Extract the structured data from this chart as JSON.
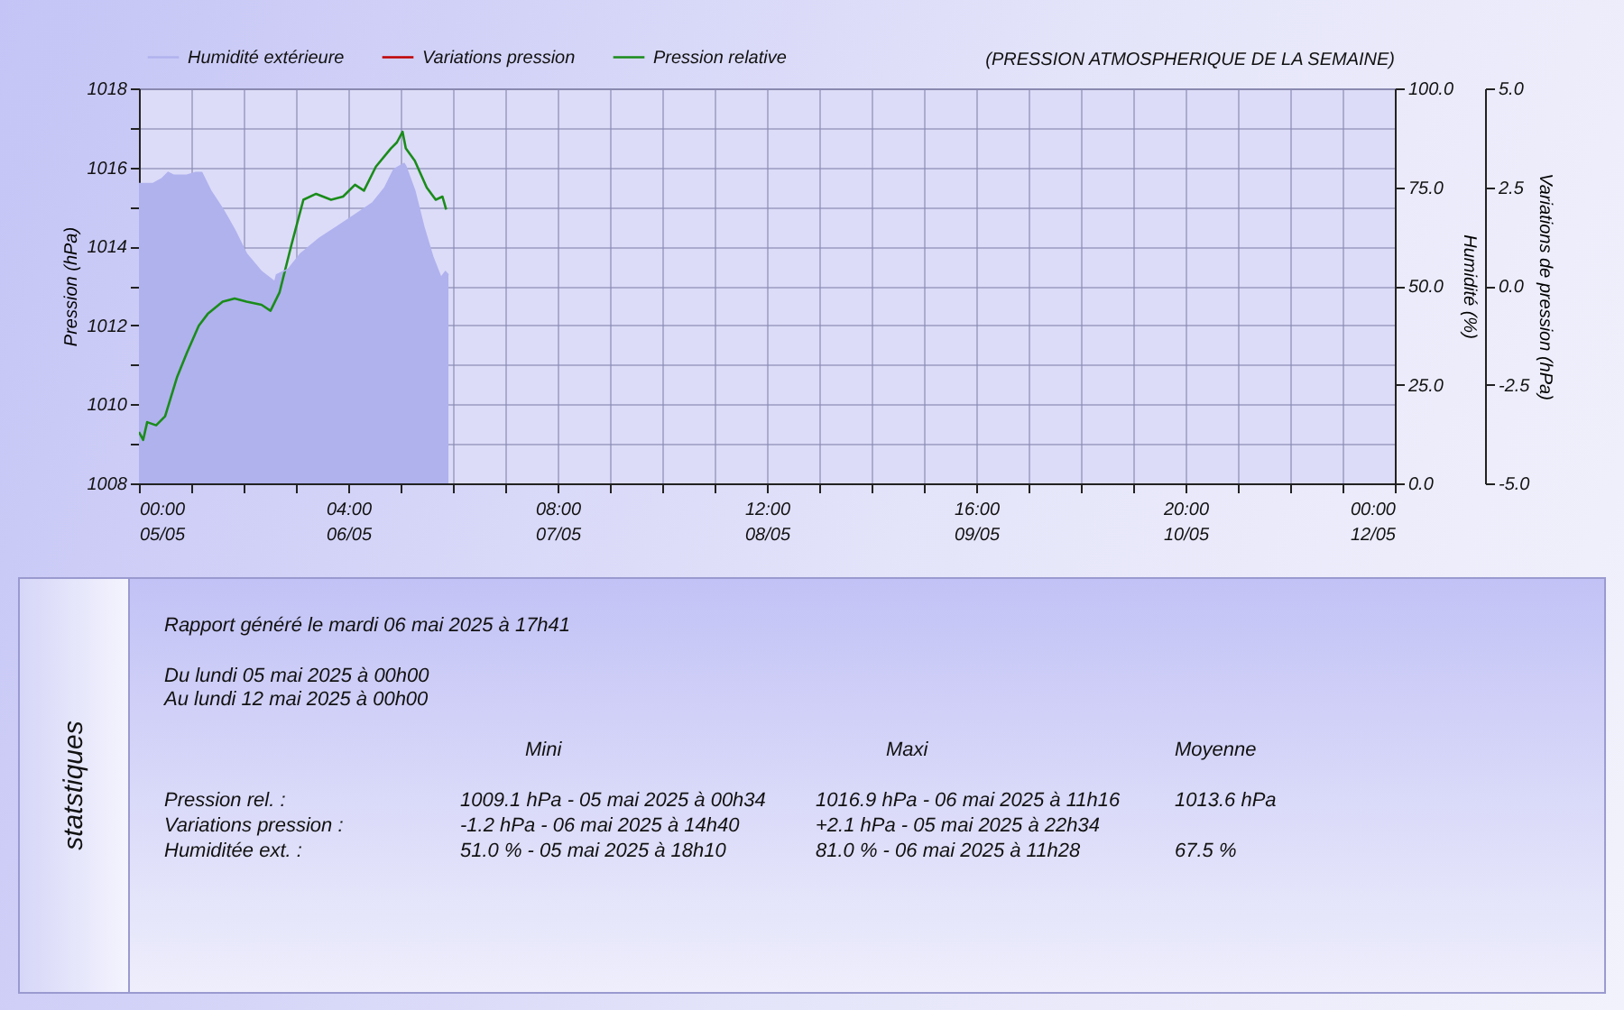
{
  "chart_data": {
    "type": "line",
    "title": "(PRESSION ATMOSPHERIQUE DE LA SEMAINE)",
    "ylabel": "Pression (hPa)",
    "y2label": "Humidité (%)",
    "y3label": "Variations de pression (hPa)",
    "legend": "top",
    "grid": true,
    "xlim": [
      "2025-05-05T00:00",
      "2025-05-12T00:00"
    ],
    "xticks": [
      {
        "value": "2025-05-05T00:00",
        "label": "00:00\n05/05"
      },
      {
        "value": "2025-05-05T07:00",
        "label": null
      },
      {
        "value": "2025-05-05T14:00",
        "label": null
      },
      {
        "value": "2025-05-05T21:00",
        "label": null
      },
      {
        "value": "2025-05-06T04:00",
        "label": "04:00\n06/05"
      },
      {
        "value": "2025-05-06T11:00",
        "label": null
      },
      {
        "value": "2025-05-06T18:00",
        "label": null
      },
      {
        "value": "2025-05-07T01:00",
        "label": null
      },
      {
        "value": "2025-05-07T08:00",
        "label": "08:00\n07/05"
      },
      {
        "value": "2025-05-07T15:00",
        "label": null
      },
      {
        "value": "2025-05-07T22:00",
        "label": null
      },
      {
        "value": "2025-05-08T05:00",
        "label": null
      },
      {
        "value": "2025-05-08T12:00",
        "label": "12:00\n08/05"
      },
      {
        "value": "2025-05-08T19:00",
        "label": null
      },
      {
        "value": "2025-05-09T02:00",
        "label": null
      },
      {
        "value": "2025-05-09T09:00",
        "label": null
      },
      {
        "value": "2025-05-09T16:00",
        "label": "16:00\n09/05"
      },
      {
        "value": "2025-05-09T23:00",
        "label": null
      },
      {
        "value": "2025-05-10T06:00",
        "label": null
      },
      {
        "value": "2025-05-10T13:00",
        "label": null
      },
      {
        "value": "2025-05-10T20:00",
        "label": "20:00\n10/05"
      },
      {
        "value": "2025-05-11T03:00",
        "label": null
      },
      {
        "value": "2025-05-11T10:00",
        "label": null
      },
      {
        "value": "2025-05-11T17:00",
        "label": null
      },
      {
        "value": "2025-05-12T00:00",
        "label": "00:00\n12/05"
      }
    ],
    "ylim": [
      1008,
      1018
    ],
    "yticks": [
      1008,
      {
        "value": 1009,
        "label": null
      },
      1010,
      {
        "value": 1011,
        "label": null
      },
      1012,
      {
        "value": 1013,
        "label": null
      },
      1014,
      {
        "value": 1015,
        "label": null
      },
      1016,
      {
        "value": 1017,
        "label": null
      },
      1018
    ],
    "y2lim": [
      0,
      100
    ],
    "y2ticks": [
      {
        "value": 0,
        "label": "0.0"
      },
      {
        "value": 25,
        "label": "25.0"
      },
      {
        "value": 50,
        "label": "50.0"
      },
      {
        "value": 75,
        "label": "75.0"
      },
      {
        "value": 100,
        "label": "100.0"
      }
    ],
    "y3lim": [
      -5,
      5
    ],
    "y3ticks": [
      {
        "value": -5,
        "label": "-5.0"
      },
      {
        "value": -2.5,
        "label": "-2.5"
      },
      {
        "value": 0,
        "label": "0.0"
      },
      {
        "value": 2.5,
        "label": "2.5"
      },
      {
        "value": 5,
        "label": "5.0"
      }
    ],
    "series": [
      {
        "name": "Humidité extérieure",
        "type": "area",
        "axis": "y2",
        "color": "#b0b2ee",
        "x": [
          "2025-05-05T00:00",
          "2025-05-05T01:54",
          "2025-05-05T03:06",
          "2025-05-05T03:54",
          "2025-05-05T04:42",
          "2025-05-05T06:24",
          "2025-05-05T07:36",
          "2025-05-05T08:24",
          "2025-05-05T09:36",
          "2025-05-05T11:12",
          "2025-05-05T12:48",
          "2025-05-05T14:24",
          "2025-05-05T16:24",
          "2025-05-05T18:00",
          "2025-05-05T18:10",
          "2025-05-05T18:24",
          "2025-05-05T20:00",
          "2025-05-05T21:36",
          "2025-05-06T00:06",
          "2025-05-06T02:30",
          "2025-05-06T04:54",
          "2025-05-06T07:18",
          "2025-05-06T08:54",
          "2025-05-06T10:06",
          "2025-05-06T11:28",
          "2025-05-06T11:42",
          "2025-05-06T12:54",
          "2025-05-06T14:06",
          "2025-05-06T15:18",
          "2025-05-06T16:24",
          "2025-05-06T17:00",
          "2025-05-06T17:24"
        ],
        "values": [
          75.9,
          75.9,
          77.2,
          78.7,
          78.0,
          78.0,
          78.7,
          78.7,
          74.1,
          69.5,
          64.2,
          58.1,
          53.6,
          51.3,
          51.0,
          52.8,
          54.3,
          58.1,
          62.0,
          65.0,
          68.0,
          71.1,
          74.9,
          79.5,
          81.0,
          80.3,
          74.1,
          65.0,
          57.4,
          52.1,
          53.6,
          52.8
        ]
      },
      {
        "name": "Variations pression",
        "axis": "y3",
        "color": "#c00000"
      },
      {
        "name": "Pression relative",
        "axis": "y",
        "color": "#1a8c1a",
        "x": [
          "2025-05-05T00:00",
          "2025-05-05T00:34",
          "2025-05-05T01:06",
          "2025-05-05T02:18",
          "2025-05-05T03:30",
          "2025-05-05T05:06",
          "2025-05-05T06:24",
          "2025-05-05T08:00",
          "2025-05-05T09:12",
          "2025-05-05T11:12",
          "2025-05-05T12:48",
          "2025-05-05T14:24",
          "2025-05-05T16:24",
          "2025-05-05T17:36",
          "2025-05-05T18:48",
          "2025-05-05T20:24",
          "2025-05-05T22:00",
          "2025-05-05T23:42",
          "2025-05-06T01:42",
          "2025-05-06T03:18",
          "2025-05-06T04:54",
          "2025-05-06T06:06",
          "2025-05-06T07:42",
          "2025-05-06T09:42",
          "2025-05-06T10:30",
          "2025-05-06T11:16",
          "2025-05-06T11:42",
          "2025-05-06T12:54",
          "2025-05-06T14:30",
          "2025-05-06T15:42",
          "2025-05-06T16:36",
          "2025-05-06T17:06"
        ],
        "values": [
          1009.3,
          1009.1,
          1009.55,
          1009.47,
          1009.7,
          1010.69,
          1011.3,
          1011.99,
          1012.29,
          1012.6,
          1012.68,
          1012.6,
          1012.52,
          1012.37,
          1012.83,
          1014.04,
          1015.18,
          1015.33,
          1015.18,
          1015.26,
          1015.56,
          1015.41,
          1016.02,
          1016.48,
          1016.63,
          1016.9,
          1016.48,
          1016.17,
          1015.49,
          1015.18,
          1015.26,
          1014.93
        ]
      }
    ],
    "annotations": [
      "Rapport généré le mardi 06 mai 2025 à 17h41",
      "Du lundi 05 mai 2025 à 00h00",
      "Au lundi 12 mai 2025 à 00h00",
      "Mini",
      "Maxi",
      "Moyenne",
      "Pression rel. :",
      "1009.1 hPa - 05 mai 2025 à 00h34",
      "1016.9 hPa - 06 mai 2025 à 11h16",
      "1013.6 hPa",
      "Variations pression :",
      "-1.2 hPa - 06 mai 2025 à 14h40",
      "+2.1 hPa - 05 mai 2025 à 22h34",
      "Humiditée ext. :",
      "51.0 % - 05 mai 2025 à 18h10",
      "81.0 % - 06 mai 2025 à 11h28",
      "67.5 %",
      "statstiques"
    ]
  }
}
